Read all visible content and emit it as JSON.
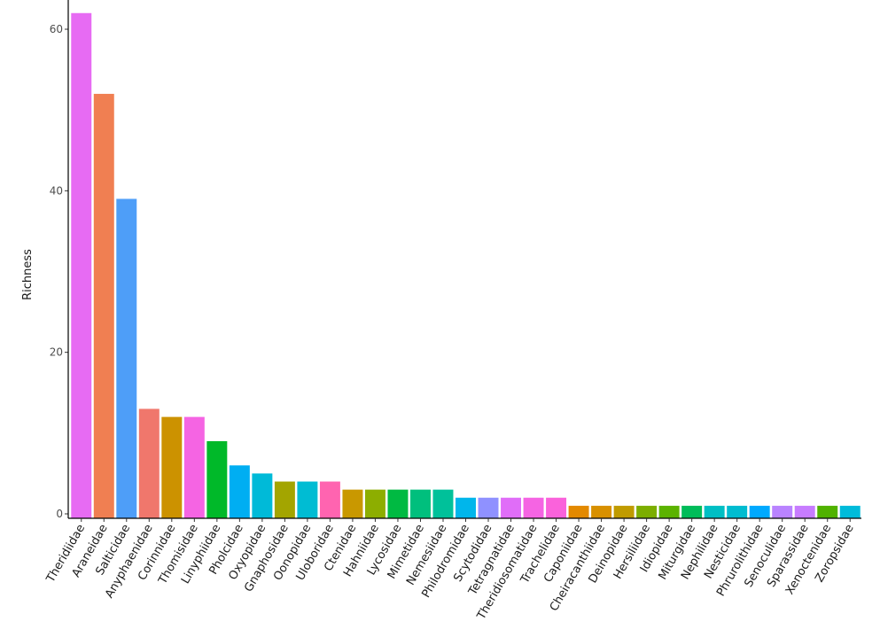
{
  "chart_data": {
    "type": "bar",
    "title": "",
    "xlabel": "",
    "ylabel": "Richness",
    "ylim": [
      0,
      62
    ],
    "yticks": [
      0,
      20,
      40,
      60
    ],
    "grid": false,
    "legend": "none",
    "categories": [
      "Theridiidae",
      "Araneidae",
      "Salticidae",
      "Anyphaenidae",
      "Corinnidae",
      "Thomisidae",
      "Linyphiidae",
      "Pholcidae",
      "Oxyopidae",
      "Gnaphosidae",
      "Oonopidae",
      "Uloboridae",
      "Ctenidae",
      "Hahniidae",
      "Lycosidae",
      "Mimetidae",
      "Nemesiidae",
      "Philodromidae",
      "Scytodidae",
      "Tetragnatidae",
      "Theridiosomatidae",
      "Trachelidae",
      "Caponiidae",
      "Cheiracanthiidae",
      "Deinopidae",
      "Hersiliidae",
      "Idiopidae",
      "Miturgidae",
      "Nephilidae",
      "Nesticidae",
      "Phrurolithidae",
      "Senoculidae",
      "Sparassidae",
      "Xenoctenidae",
      "Zoropsidae"
    ],
    "values": [
      62,
      52,
      39,
      13,
      12,
      12,
      9,
      6,
      5,
      4,
      4,
      4,
      3,
      3,
      3,
      3,
      3,
      2,
      2,
      2,
      2,
      2,
      1,
      1,
      1,
      1,
      1,
      1,
      1,
      1,
      1,
      1,
      1,
      1,
      1
    ],
    "colors": [
      "#E76BF3",
      "#F07F52",
      "#4E9EF8",
      "#F0776C",
      "#CC9200",
      "#F564E3",
      "#00B929",
      "#00AEF2",
      "#00BAD8",
      "#A3A500",
      "#00BCD3",
      "#FF64B0",
      "#C99800",
      "#8DAE00",
      "#00BA42",
      "#00BF7D",
      "#00C19A",
      "#00B6EB",
      "#8F91FF",
      "#E06DF8",
      "#F564E3",
      "#FA62DB",
      "#E38900",
      "#D89000",
      "#C09B00",
      "#7CAE00",
      "#5BB300",
      "#00BC59",
      "#00BFC4",
      "#00BCD0",
      "#00A9FF",
      "#B983FF",
      "#C77CFF",
      "#50B200",
      "#00BBDA"
    ]
  }
}
